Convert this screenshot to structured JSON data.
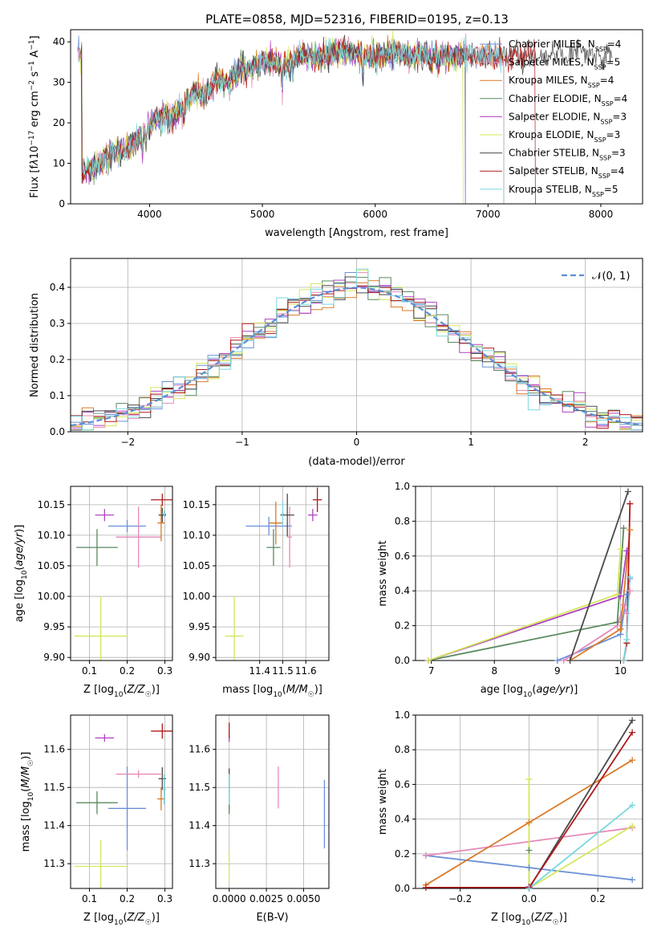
{
  "figure_title": "PLATE=0858, MJD=52316, FIBERID=0195, z=0.13",
  "colors": {
    "Chabrier MILES": "#6a8fd8",
    "Salpeter MILES": "#e58ab8",
    "Kroupa MILES": "#d97a28",
    "Chabrier ELODIE": "#5a8a5e",
    "Salpeter ELODIE": "#b040c0",
    "Kroupa ELODIE": "#d4e85a",
    "Chabrier STELIB": "#4a4a4a",
    "Salpeter STELIB": "#b01818",
    "Kroupa STELIB": "#7ad8e0",
    "normal_curve": "#5b8fd6",
    "grid": "#b0b0b0"
  },
  "chart_data": [
    {
      "id": "spectrum",
      "type": "line",
      "xlabel": "wavelength [Angstrom, rest frame]",
      "ylabel_html": "Flux [f<tspan font-style='italic'>λ</tspan>10<tspan baseline-shift='super' font-size='9'>−17</tspan> erg cm<tspan baseline-shift='super' font-size='9'>−2</tspan> s<tspan baseline-shift='super' font-size='9'>−1</tspan> A<tspan baseline-shift='super' font-size='9'>−1</tspan>]",
      "xlim": [
        3300,
        8370
      ],
      "ylim": [
        0,
        43
      ],
      "xticks": [
        4000,
        5000,
        6000,
        7000,
        8000
      ],
      "yticks": [
        0,
        10,
        20,
        30,
        40
      ],
      "grid": false,
      "legend_position": "top-right",
      "envelope": {
        "x": [
          3400,
          3500,
          3600,
          3700,
          3800,
          3900,
          4000,
          4100,
          4200,
          4300,
          4400,
          4500,
          4600,
          4700,
          4800,
          4900,
          5000,
          5100,
          5200,
          5300,
          5400,
          5500,
          5600,
          5700,
          5800,
          5900,
          6000,
          6100,
          6200,
          6300,
          6400,
          6500,
          6600,
          6700,
          6800,
          6900,
          7000,
          7100,
          7200,
          7300,
          7400,
          7500,
          7600,
          7700,
          7800,
          7900,
          8000,
          8100
        ],
        "y": [
          8,
          9,
          11,
          13,
          13,
          16,
          19,
          22,
          21,
          24,
          28,
          27,
          31,
          30,
          33,
          34,
          35,
          35,
          34,
          36,
          37,
          36,
          37,
          38,
          37,
          37,
          36,
          37,
          38,
          36,
          37,
          36,
          37,
          36,
          37,
          36,
          37,
          36,
          37,
          36,
          37,
          36,
          37,
          37,
          38,
          38,
          37,
          37
        ]
      },
      "series": [
        {
          "name": "Chabrier MILES, N_SSP=4",
          "label_prefix": "Chabrier MILES, N",
          "sub": "SSP",
          "label_suffix": "=4",
          "x_end": 7140
        },
        {
          "name": "Salpeter MILES, N_SSP=5",
          "label_prefix": "Salpeter MILES, N",
          "sub": "SSP",
          "label_suffix": "=5",
          "x_end": 7140
        },
        {
          "name": "Kroupa MILES, N_SSP=4",
          "label_prefix": "Kroupa MILES, N",
          "sub": "SSP",
          "label_suffix": "=4",
          "x_end": 7140
        },
        {
          "name": "Chabrier ELODIE, N_SSP=4",
          "label_prefix": "Chabrier ELODIE, N",
          "sub": "SSP",
          "label_suffix": "=4",
          "x_end": 6800
        },
        {
          "name": "Salpeter ELODIE, N_SSP=3",
          "label_prefix": "Salpeter ELODIE, N",
          "sub": "SSP",
          "label_suffix": "=3",
          "x_end": 6800
        },
        {
          "name": "Kroupa ELODIE, N_SSP=3",
          "label_prefix": "Kroupa ELODIE, N",
          "sub": "SSP",
          "label_suffix": "=3",
          "x_end": 6780
        },
        {
          "name": "Chabrier STELIB, N_SSP=3",
          "label_prefix": "Chabrier STELIB, N",
          "sub": "SSP",
          "label_suffix": "=3",
          "x_end": 8370
        },
        {
          "name": "Salpeter STELIB, N_SSP=4",
          "label_prefix": "Salpeter STELIB, N",
          "sub": "SSP",
          "label_suffix": "=4",
          "x_end": 7420
        },
        {
          "name": "Kroupa STELIB, N_SSP=5",
          "label_prefix": "Kroupa STELIB, N",
          "sub": "SSP",
          "label_suffix": "=5",
          "x_end": 7140
        }
      ]
    },
    {
      "id": "residuals",
      "type": "histogram",
      "xlabel": "(data-model)/error",
      "ylabel": "Normed distribution",
      "xlim": [
        -2.5,
        2.5
      ],
      "ylim": [
        0,
        0.48
      ],
      "xticks": [
        -2,
        -1,
        0,
        1,
        2
      ],
      "yticks": [
        0,
        0.1,
        0.2,
        0.3,
        0.4
      ],
      "grid": true,
      "legend_position": "top-right",
      "reference_curve": {
        "name": "𝒩(0, 1)",
        "mean": 0,
        "std": 1
      },
      "bin_width": 0.1,
      "series_count": 9
    },
    {
      "id": "age_vs_Z",
      "type": "errorbar",
      "xlabel": "Z [log₁₀(Z/Z☉)]",
      "ylabel": "age [log₁₀(age/yr)]",
      "xlim": [
        0.05,
        0.32
      ],
      "ylim": [
        9.895,
        10.18
      ],
      "xticks": [
        0.1,
        0.2,
        0.3
      ],
      "yticks": [
        9.9,
        9.95,
        10.0,
        10.05,
        10.1,
        10.15
      ],
      "grid": true,
      "points": [
        {
          "series": "Chabrier MILES",
          "x": 0.2,
          "xerr": 0.05,
          "y": 10.115,
          "yerr": 0.01
        },
        {
          "series": "Salpeter MILES",
          "x": 0.23,
          "xerr": 0.06,
          "y": 10.097,
          "yerr": 0.05
        },
        {
          "series": "Kroupa MILES",
          "x": 0.29,
          "xerr": 0.01,
          "y": 10.12,
          "yerr": 0.03
        },
        {
          "series": "Chabrier ELODIE",
          "x": 0.12,
          "xerr": 0.055,
          "y": 10.08,
          "yerr": 0.03
        },
        {
          "series": "Salpeter ELODIE",
          "x": 0.14,
          "xerr": 0.025,
          "y": 10.133,
          "yerr": 0.01
        },
        {
          "series": "Kroupa ELODIE",
          "x": 0.13,
          "xerr": 0.07,
          "y": 9.935,
          "yerr": 0.065
        },
        {
          "series": "Chabrier STELIB",
          "x": 0.293,
          "xerr": 0.01,
          "y": 10.133,
          "yerr": 0.012
        },
        {
          "series": "Salpeter STELIB",
          "x": 0.293,
          "xerr": 0.03,
          "y": 10.158,
          "yerr": 0.01
        },
        {
          "series": "Kroupa STELIB",
          "x": 0.298,
          "xerr": 0.005,
          "y": 10.135,
          "yerr": 0.005
        }
      ]
    },
    {
      "id": "age_vs_mass",
      "type": "errorbar",
      "xlabel": "mass [log₁₀(M/M☉)]",
      "ylabel": "",
      "xlim": [
        11.21,
        11.7
      ],
      "ylim": [
        9.895,
        10.18
      ],
      "xticks": [
        11.4,
        11.5,
        11.6
      ],
      "yticks": [
        9.9,
        9.95,
        10.0,
        10.05,
        10.1,
        10.15
      ],
      "grid": true,
      "points": [
        {
          "series": "Chabrier MILES",
          "x": 11.44,
          "xerr": 0.1,
          "y": 10.115,
          "yerr": 0.015
        },
        {
          "series": "Salpeter MILES",
          "x": 11.53,
          "xerr": 0.01,
          "y": 10.097,
          "yerr": 0.05
        },
        {
          "series": "Kroupa MILES",
          "x": 11.47,
          "xerr": 0.03,
          "y": 10.12,
          "yerr": 0.035
        },
        {
          "series": "Chabrier ELODIE",
          "x": 11.46,
          "xerr": 0.03,
          "y": 10.08,
          "yerr": 0.03
        },
        {
          "series": "Salpeter ELODIE",
          "x": 11.63,
          "xerr": 0.02,
          "y": 10.133,
          "yerr": 0.01
        },
        {
          "series": "Kroupa ELODIE",
          "x": 11.29,
          "xerr": 0.04,
          "y": 9.935,
          "yerr": 0.065
        },
        {
          "series": "Chabrier STELIB",
          "x": 11.52,
          "xerr": 0.03,
          "y": 10.133,
          "yerr": 0.035
        },
        {
          "series": "Salpeter STELIB",
          "x": 11.65,
          "xerr": 0.02,
          "y": 10.158,
          "yerr": 0.02
        },
        {
          "series": "Kroupa STELIB",
          "x": 11.5,
          "xerr": 0.005,
          "y": 10.135,
          "yerr": 0.02
        }
      ]
    },
    {
      "id": "mass_vs_Z",
      "type": "errorbar",
      "xlabel": "Z [log₁₀(Z/Z☉)]",
      "ylabel": "mass [log₁₀(M/M☉)]",
      "xlim": [
        0.05,
        0.32
      ],
      "ylim": [
        11.235,
        11.69
      ],
      "xticks": [
        0.1,
        0.2,
        0.3
      ],
      "yticks": [
        11.3,
        11.4,
        11.5,
        11.6
      ],
      "grid": true,
      "points": [
        {
          "series": "Chabrier MILES",
          "x": 0.2,
          "xerr": 0.05,
          "y": 11.445,
          "yerr": 0.11
        },
        {
          "series": "Salpeter MILES",
          "x": 0.23,
          "xerr": 0.06,
          "y": 11.535,
          "yerr": 0.01
        },
        {
          "series": "Kroupa MILES",
          "x": 0.29,
          "xerr": 0.01,
          "y": 11.47,
          "yerr": 0.03
        },
        {
          "series": "Chabrier ELODIE",
          "x": 0.12,
          "xerr": 0.055,
          "y": 11.46,
          "yerr": 0.03
        },
        {
          "series": "Salpeter ELODIE",
          "x": 0.14,
          "xerr": 0.025,
          "y": 11.63,
          "yerr": 0.01
        },
        {
          "series": "Kroupa ELODIE",
          "x": 0.13,
          "xerr": 0.07,
          "y": 11.293,
          "yerr": 0.07
        },
        {
          "series": "Chabrier STELIB",
          "x": 0.293,
          "xerr": 0.01,
          "y": 11.523,
          "yerr": 0.03
        },
        {
          "series": "Salpeter STELIB",
          "x": 0.293,
          "xerr": 0.03,
          "y": 11.648,
          "yerr": 0.02
        },
        {
          "series": "Kroupa STELIB",
          "x": 0.298,
          "xerr": 0.005,
          "y": 11.495,
          "yerr": 0.04
        }
      ]
    },
    {
      "id": "mass_vs_EBV",
      "type": "errorbar",
      "xlabel": "E(B-V)",
      "ylabel": "",
      "xlim": [
        -0.0009,
        0.0067
      ],
      "ylim": [
        11.235,
        11.69
      ],
      "xticks": [
        0.0,
        0.0025,
        0.005
      ],
      "xtick_labels": [
        "0.0000",
        "0.0025",
        "0.0050"
      ],
      "yticks": [
        11.3,
        11.4,
        11.5,
        11.6
      ],
      "grid": true,
      "points": [
        {
          "series": "Chabrier MILES",
          "x": 0.0064,
          "xerr": 0,
          "y": 11.43,
          "yerr": 0.09
        },
        {
          "series": "Salpeter MILES",
          "x": 0.0033,
          "xerr": 0,
          "y": 11.5,
          "yerr": 0.055
        },
        {
          "series": "Kroupa MILES",
          "x": 0.0,
          "xerr": 0,
          "y": 11.47,
          "yerr": 0.03
        },
        {
          "series": "Chabrier ELODIE",
          "x": 0.0,
          "xerr": 0,
          "y": 11.46,
          "yerr": 0.03
        },
        {
          "series": "Salpeter ELODIE",
          "x": 0.0,
          "xerr": 0,
          "y": 11.63,
          "yerr": 0.01
        },
        {
          "series": "Kroupa ELODIE",
          "x": 0.0,
          "xerr": 0,
          "y": 11.293,
          "yerr": 0.04
        },
        {
          "series": "Chabrier STELIB",
          "x": 0.0,
          "xerr": 0,
          "y": 11.52,
          "yerr": 0.03
        },
        {
          "series": "Salpeter STELIB",
          "x": 0.0,
          "xerr": 0,
          "y": 11.65,
          "yerr": 0.02
        },
        {
          "series": "Kroupa STELIB",
          "x": 0.0,
          "xerr": 0,
          "y": 11.495,
          "yerr": 0.04
        }
      ]
    },
    {
      "id": "mass_weight_vs_age",
      "type": "line",
      "xlabel": "age [log₁₀(age/yr)]",
      "ylabel": "mass weight",
      "xlim": [
        6.75,
        10.35
      ],
      "ylim": [
        0,
        1.0
      ],
      "xticks": [
        7,
        8,
        9,
        10
      ],
      "yticks": [
        0.0,
        0.2,
        0.4,
        0.6,
        0.8,
        1.0
      ],
      "grid": true,
      "series": [
        {
          "name": "Chabrier MILES",
          "x": [
            9.0,
            10.0,
            10.1,
            10.15
          ],
          "y": [
            0.0,
            0.15,
            0.38,
            0.47
          ]
        },
        {
          "name": "Salpeter MILES",
          "x": [
            9.1,
            9.95,
            10.05,
            10.1,
            10.15
          ],
          "y": [
            0.0,
            0.2,
            0.32,
            0.27,
            0.4
          ]
        },
        {
          "name": "Kroupa MILES",
          "x": [
            9.2,
            10.0,
            10.15
          ],
          "y": [
            0.0,
            0.18,
            0.75
          ]
        },
        {
          "name": "Chabrier ELODIE",
          "x": [
            6.95,
            9.95,
            10.05
          ],
          "y": [
            0.0,
            0.22,
            0.76
          ]
        },
        {
          "name": "Salpeter ELODIE",
          "x": [
            6.95,
            10.0,
            10.1
          ],
          "y": [
            0.0,
            0.37,
            0.63
          ]
        },
        {
          "name": "Kroupa ELODIE",
          "x": [
            6.95,
            9.95,
            10.0
          ],
          "y": [
            0.0,
            0.38,
            0.64
          ]
        },
        {
          "name": "Chabrier STELIB",
          "x": [
            9.2,
            10.12
          ],
          "y": [
            0.0,
            0.97
          ]
        },
        {
          "name": "Salpeter STELIB",
          "x": [
            10.05,
            10.1,
            10.15
          ],
          "y": [
            0.0,
            0.1,
            0.9
          ]
        },
        {
          "name": "Kroupa STELIB",
          "x": [
            10.05,
            10.1,
            10.15
          ],
          "y": [
            0.0,
            0.12,
            0.48
          ]
        }
      ]
    },
    {
      "id": "mass_weight_vs_Z",
      "type": "line",
      "xlabel": "Z [log₁₀(Z/Z☉)]",
      "ylabel": "mass weight",
      "xlim": [
        -0.33,
        0.33
      ],
      "ylim": [
        0,
        1.0
      ],
      "xticks": [
        -0.2,
        0.0,
        0.2
      ],
      "yticks": [
        0.0,
        0.2,
        0.4,
        0.6,
        0.8,
        1.0
      ],
      "grid": true,
      "series": [
        {
          "name": "Chabrier MILES",
          "x": [
            -0.3,
            0.0,
            0.3
          ],
          "y": [
            0.19,
            0.12,
            0.05
          ]
        },
        {
          "name": "Salpeter MILES",
          "x": [
            -0.3,
            0.3
          ],
          "y": [
            0.19,
            0.35
          ]
        },
        {
          "name": "Kroupa MILES",
          "x": [
            -0.3,
            0.0,
            0.3
          ],
          "y": [
            0.02,
            0.38,
            0.74
          ]
        },
        {
          "name": "Chabrier ELODIE",
          "x": [
            0.0,
            0.0
          ],
          "y": [
            0.0,
            0.22
          ]
        },
        {
          "name": "Salpeter ELODIE",
          "x": [
            0.0,
            0.0
          ],
          "y": [
            0.0,
            0.01
          ]
        },
        {
          "name": "Kroupa ELODIE",
          "x": [
            0.0,
            0.0,
            0.3
          ],
          "y": [
            0.63,
            0.0,
            0.36
          ]
        },
        {
          "name": "Chabrier STELIB",
          "x": [
            0.0,
            0.3
          ],
          "y": [
            0.0,
            0.97
          ]
        },
        {
          "name": "Salpeter STELIB",
          "x": [
            -0.3,
            0.0,
            0.3
          ],
          "y": [
            0.005,
            0.005,
            0.9
          ]
        },
        {
          "name": "Kroupa STELIB",
          "x": [
            0.0,
            0.3
          ],
          "y": [
            0.0,
            0.48
          ]
        }
      ]
    }
  ]
}
